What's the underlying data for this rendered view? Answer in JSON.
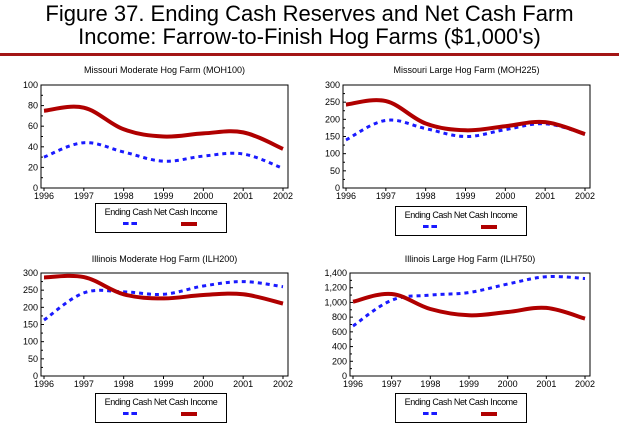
{
  "figure": {
    "title_line1": "Figure 37. Ending Cash Reserves and Net Cash Farm",
    "title_line2": "Income:  Farrow-to-Finish Hog Farms ($1,000's)",
    "rule_color": "#a31515"
  },
  "colors": {
    "ending_cash": "#1a1aff",
    "net_cash_income": "#b00000"
  },
  "legend": {
    "text": "Ending Cash Net Cash Income",
    "series": [
      "Ending Cash",
      "Net Cash Income"
    ]
  },
  "chart_data": [
    {
      "type": "line",
      "title": "Missouri Moderate Hog Farm (MOH100)",
      "x": [
        1996,
        1997,
        1998,
        1999,
        2000,
        2001,
        2002
      ],
      "xticks": [
        "1996",
        "1997",
        "1998",
        "1999",
        "2000",
        "2001",
        "2002"
      ],
      "ylim": [
        0,
        100
      ],
      "yticks": [
        "0",
        "20",
        "40",
        "60",
        "80",
        "100"
      ],
      "yvals": [
        0,
        20,
        40,
        60,
        80,
        100
      ],
      "grid": false,
      "legend_position": "bottom",
      "series": [
        {
          "name": "Ending Cash",
          "style": "dashed",
          "values": [
            30,
            44,
            35,
            26,
            31,
            33,
            19
          ]
        },
        {
          "name": "Net Cash Income",
          "style": "solid",
          "values": [
            75,
            78,
            57,
            50,
            53,
            54,
            38
          ]
        }
      ]
    },
    {
      "type": "line",
      "title": "Missouri Large Hog Farm (MOH225)",
      "x": [
        1996,
        1997,
        1998,
        1999,
        2000,
        2001,
        2002
      ],
      "xticks": [
        "1996",
        "1997",
        "1998",
        "1999",
        "2000",
        "2001",
        "2002"
      ],
      "ylim": [
        0,
        300
      ],
      "yticks": [
        "0",
        "50",
        "100",
        "150",
        "200",
        "250",
        "300"
      ],
      "yvals": [
        0,
        50,
        100,
        150,
        200,
        250,
        300
      ],
      "grid": false,
      "legend_position": "bottom",
      "series": [
        {
          "name": "Ending Cash",
          "style": "dashed",
          "values": [
            140,
            197,
            173,
            150,
            170,
            187,
            157
          ]
        },
        {
          "name": "Net Cash Income",
          "style": "solid",
          "values": [
            243,
            253,
            188,
            168,
            180,
            192,
            157
          ]
        }
      ]
    },
    {
      "type": "line",
      "title": "Illinois Moderate Hog Farm (ILH200)",
      "x": [
        1996,
        1997,
        1998,
        1999,
        2000,
        2001,
        2002
      ],
      "xticks": [
        "1996",
        "1997",
        "1998",
        "1999",
        "2000",
        "2001",
        "2002"
      ],
      "ylim": [
        0,
        300
      ],
      "yticks": [
        "0",
        "50",
        "100",
        "150",
        "200",
        "250",
        "300"
      ],
      "yvals": [
        0,
        50,
        100,
        150,
        200,
        250,
        300
      ],
      "grid": false,
      "legend_position": "bottom",
      "series": [
        {
          "name": "Ending Cash",
          "style": "dashed",
          "values": [
            163,
            242,
            245,
            238,
            262,
            275,
            260
          ]
        },
        {
          "name": "Net Cash Income",
          "style": "solid",
          "values": [
            287,
            288,
            238,
            226,
            236,
            238,
            211
          ]
        }
      ]
    },
    {
      "type": "line",
      "title": "Illinois Large Hog Farm (ILH750)",
      "x": [
        1996,
        1997,
        1998,
        1999,
        2000,
        2001,
        2002
      ],
      "xticks": [
        "1996",
        "1997",
        "1998",
        "1999",
        "2000",
        "2001",
        "2002"
      ],
      "ylim": [
        0,
        1400
      ],
      "yticks": [
        "0",
        "200",
        "400",
        "600",
        "800",
        "1,000",
        "1,200",
        "1,400"
      ],
      "yvals": [
        0,
        200,
        400,
        600,
        800,
        1000,
        1200,
        1400
      ],
      "grid": false,
      "legend_position": "bottom",
      "series": [
        {
          "name": "Ending Cash",
          "style": "dashed",
          "values": [
            680,
            1030,
            1100,
            1135,
            1250,
            1350,
            1325
          ]
        },
        {
          "name": "Net Cash Income",
          "style": "solid",
          "values": [
            1010,
            1115,
            910,
            825,
            870,
            925,
            780
          ]
        }
      ]
    }
  ]
}
